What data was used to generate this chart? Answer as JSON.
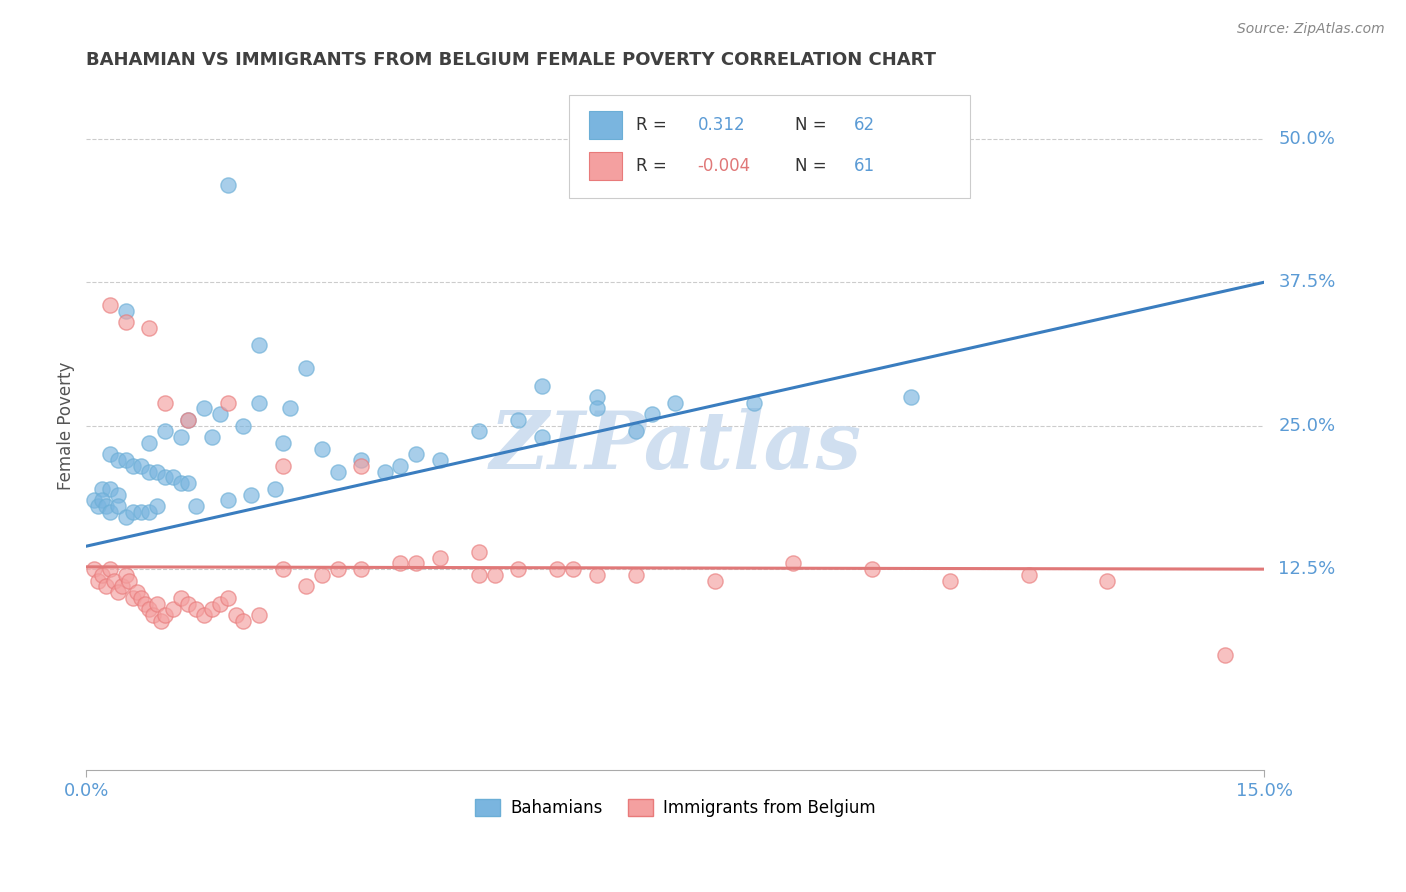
{
  "title": "BAHAMIAN VS IMMIGRANTS FROM BELGIUM FEMALE POVERTY CORRELATION CHART",
  "source": "Source: ZipAtlas.com",
  "ylabel": "Female Poverty",
  "xlim": [
    0.0,
    15.0
  ],
  "ylim": [
    -5.0,
    55.0
  ],
  "yticks": [
    12.5,
    25.0,
    37.5,
    50.0
  ],
  "ytick_labels": [
    "12.5%",
    "25.0%",
    "37.5%",
    "50.0%"
  ],
  "blue_R": 0.312,
  "blue_N": 62,
  "pink_R": -0.004,
  "pink_N": 61,
  "blue_color": "#7ab5df",
  "blue_edge": "#6baed6",
  "pink_color": "#f4a0a0",
  "pink_edge": "#e87a7a",
  "blue_line_color": "#3a7dbf",
  "pink_line_color": "#e07878",
  "watermark": "ZIPatlas",
  "legend_label_blue": "Bahamians",
  "legend_label_pink": "Immigrants from Belgium",
  "blue_scatter_x": [
    1.8,
    0.5,
    2.2,
    2.8,
    5.8,
    6.5,
    2.2,
    2.6,
    1.5,
    1.7,
    1.3,
    2.0,
    1.0,
    1.6,
    1.2,
    0.8,
    2.5,
    3.0,
    0.3,
    0.4,
    0.5,
    0.6,
    0.7,
    0.8,
    0.9,
    1.0,
    1.1,
    1.2,
    1.3,
    0.2,
    0.3,
    0.4,
    3.5,
    4.0,
    5.0,
    7.0,
    7.5,
    4.5,
    6.5,
    3.8,
    5.5,
    8.5,
    10.5,
    0.1,
    0.15,
    0.2,
    0.25,
    0.3,
    0.4,
    0.5,
    0.6,
    0.7,
    0.8,
    0.9,
    1.4,
    1.8,
    2.1,
    2.4,
    3.2,
    4.2,
    5.8,
    7.2
  ],
  "blue_scatter_y": [
    46.0,
    35.0,
    32.0,
    30.0,
    28.5,
    27.5,
    27.0,
    26.5,
    26.5,
    26.0,
    25.5,
    25.0,
    24.5,
    24.0,
    24.0,
    23.5,
    23.5,
    23.0,
    22.5,
    22.0,
    22.0,
    21.5,
    21.5,
    21.0,
    21.0,
    20.5,
    20.5,
    20.0,
    20.0,
    19.5,
    19.5,
    19.0,
    22.0,
    21.5,
    24.5,
    24.5,
    27.0,
    22.0,
    26.5,
    21.0,
    25.5,
    27.0,
    27.5,
    18.5,
    18.0,
    18.5,
    18.0,
    17.5,
    18.0,
    17.0,
    17.5,
    17.5,
    17.5,
    18.0,
    18.0,
    18.5,
    19.0,
    19.5,
    21.0,
    22.5,
    24.0,
    26.0
  ],
  "pink_scatter_x": [
    0.1,
    0.15,
    0.2,
    0.25,
    0.3,
    0.35,
    0.4,
    0.45,
    0.5,
    0.55,
    0.6,
    0.65,
    0.7,
    0.75,
    0.8,
    0.85,
    0.9,
    0.95,
    1.0,
    1.1,
    1.2,
    1.3,
    1.4,
    1.5,
    1.6,
    1.7,
    1.8,
    1.9,
    2.0,
    2.2,
    2.5,
    2.8,
    3.0,
    3.5,
    4.5,
    5.5,
    6.5,
    4.0,
    5.0,
    6.0,
    7.0,
    8.0,
    9.0,
    10.0,
    11.0,
    12.0,
    13.0,
    3.2,
    4.2,
    5.2,
    6.2,
    0.3,
    0.5,
    0.8,
    1.0,
    1.3,
    1.8,
    2.5,
    3.5,
    5.0,
    14.5
  ],
  "pink_scatter_y": [
    12.5,
    11.5,
    12.0,
    11.0,
    12.5,
    11.5,
    10.5,
    11.0,
    12.0,
    11.5,
    10.0,
    10.5,
    10.0,
    9.5,
    9.0,
    8.5,
    9.5,
    8.0,
    8.5,
    9.0,
    10.0,
    9.5,
    9.0,
    8.5,
    9.0,
    9.5,
    10.0,
    8.5,
    8.0,
    8.5,
    12.5,
    11.0,
    12.0,
    12.5,
    13.5,
    12.5,
    12.0,
    13.0,
    12.0,
    12.5,
    12.0,
    11.5,
    13.0,
    12.5,
    11.5,
    12.0,
    11.5,
    12.5,
    13.0,
    12.0,
    12.5,
    35.5,
    34.0,
    33.5,
    27.0,
    25.5,
    27.0,
    21.5,
    21.5,
    14.0,
    5.0
  ],
  "blue_trend_x": [
    0.0,
    15.0
  ],
  "blue_trend_y": [
    14.5,
    37.5
  ],
  "pink_trend_x": [
    0.0,
    15.0
  ],
  "pink_trend_y": [
    12.7,
    12.5
  ],
  "background_color": "#ffffff",
  "grid_color": "#cccccc",
  "title_color": "#404040",
  "tick_color": "#5b9bd5",
  "watermark_color": "#d0dff0"
}
